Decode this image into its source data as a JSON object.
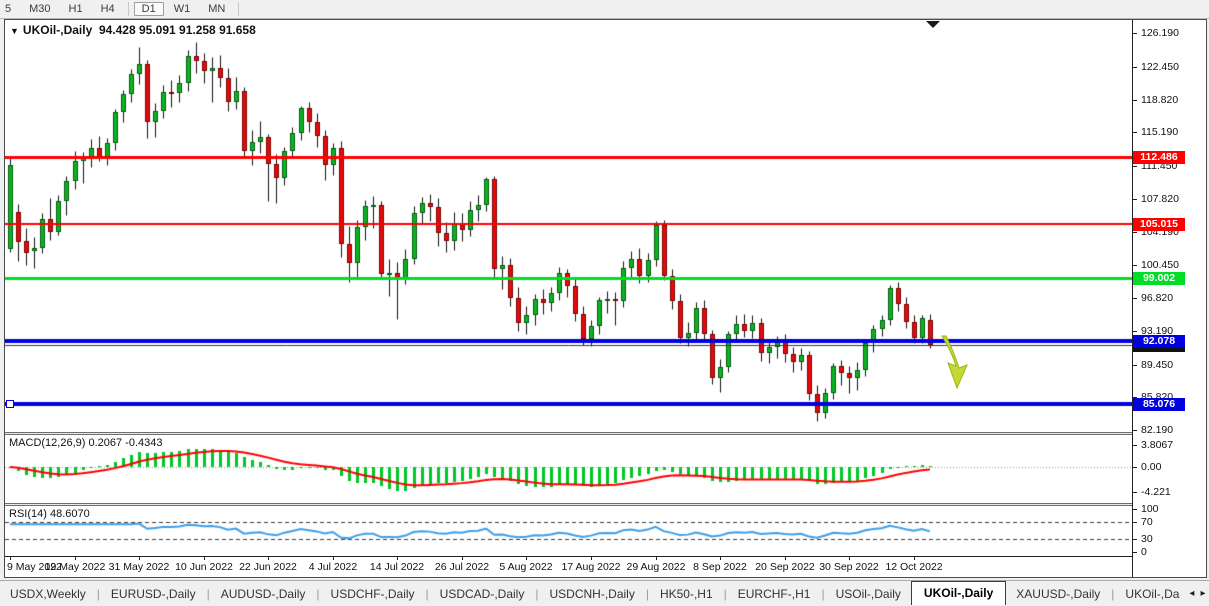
{
  "toolbar": {
    "timeframes": [
      "5",
      "M30",
      "H1",
      "H4",
      "D1",
      "W1",
      "MN"
    ],
    "active": "D1"
  },
  "window": {
    "collapse_arrow": "▼",
    "title": "UKOil-,Daily",
    "ohlc_text": "94.428 95.091 91.258 91.658",
    "shift_marker": "▼"
  },
  "price_axis": {
    "ticks": [
      126.19,
      122.45,
      118.82,
      115.19,
      111.45,
      107.82,
      104.19,
      100.45,
      96.82,
      93.19,
      89.45,
      85.82,
      82.19
    ]
  },
  "macd_panel": {
    "name": "MACD(12,26,9)",
    "values_text": "0.2067 -0.4343",
    "axis_ticks": [
      {
        "v": 3.8067,
        "label": "3.8067"
      },
      {
        "v": 0,
        "label": "0.00"
      },
      {
        "v": -4.221,
        "label": "-4.221"
      }
    ],
    "bar_color": "#00c826",
    "signal_color": "#ff0000",
    "fast": 12,
    "slow": 26,
    "signal": 9
  },
  "rsi_panel": {
    "name": "RSI(14)",
    "value_text": "48.6070",
    "period": 14,
    "axis_ticks": [
      100,
      70,
      30,
      0
    ],
    "levels": [
      70,
      30
    ],
    "line_color": "#3e9ee8"
  },
  "date_axis": {
    "labels": [
      {
        "i": 0,
        "t": "9 May 2022"
      },
      {
        "i": 8,
        "t": "19 May 2022"
      },
      {
        "i": 16,
        "t": "31 May 2022"
      },
      {
        "i": 24,
        "t": "10 Jun 2022"
      },
      {
        "i": 32,
        "t": "22 Jun 2022"
      },
      {
        "i": 40,
        "t": "4 Jul 2022"
      },
      {
        "i": 48,
        "t": "14 Jul 2022"
      },
      {
        "i": 56,
        "t": "26 Jul 2022"
      },
      {
        "i": 64,
        "t": "5 Aug 2022"
      },
      {
        "i": 72,
        "t": "17 Aug 2022"
      },
      {
        "i": 80,
        "t": "29 Aug 2022"
      },
      {
        "i": 88,
        "t": "8 Sep 2022"
      },
      {
        "i": 96,
        "t": "20 Sep 2022"
      },
      {
        "i": 104,
        "t": "30 Sep 2022"
      },
      {
        "i": 112,
        "t": "12 Oct 2022"
      }
    ]
  },
  "tabs": {
    "items": [
      "USDX,Weekly",
      "EURUSD-,Daily",
      "AUDUSD-,Daily",
      "USDCHF-,Daily",
      "USDCAD-,Daily",
      "USDCNH-,Daily",
      "HK50-,H1",
      "EURCHF-,H1",
      "USOil-,Daily",
      "UKOil-,Daily",
      "XAUUSD-,Daily",
      "UKOil-,Da"
    ],
    "active": "UKOil-,Daily",
    "scroll_left": "◂",
    "scroll_right": "▸"
  },
  "signal_arrow": {
    "fill": "#c3d832",
    "stroke": "#9db513"
  },
  "chart_data": {
    "type": "candlestick",
    "symbol": "UKOil-",
    "timeframe": "Daily",
    "title": "UKOil-,Daily",
    "ohlc_display": {
      "open": 94.428,
      "high": 95.091,
      "low": 91.258,
      "close": 91.658
    },
    "bull_color": "#0cb422",
    "bear_color": "#e60a0a",
    "wick_color": "#141414",
    "y_axis_range": [
      82.19,
      126.19
    ],
    "hlines": [
      {
        "value": 112.486,
        "label": "112.486",
        "color": "#ff0000",
        "thickness": 3
      },
      {
        "value": 105.015,
        "label": "105.015",
        "color": "#ff0000",
        "thickness": 2
      },
      {
        "value": 99.002,
        "label": "99.002",
        "color": "#00dd26",
        "thickness": 3
      },
      {
        "value": 92.078,
        "label": "92.078",
        "color": "#0000e0",
        "thickness": 4
      },
      {
        "value": 85.076,
        "label": "85.076",
        "color": "#0000e0",
        "thickness": 4,
        "handle": true
      }
    ],
    "current_price": {
      "value": 91.658,
      "label": "91.658",
      "line_color": "#3c3c3c",
      "bg": "#111111",
      "fg": "#e8e8e8"
    },
    "candles": [
      [
        102.3,
        112.4,
        101.9,
        111.6
      ],
      [
        106.4,
        107.2,
        100.9,
        103.0
      ],
      [
        103.2,
        104.6,
        100.5,
        101.8
      ],
      [
        102.0,
        103.6,
        100.2,
        102.4
      ],
      [
        102.4,
        106.2,
        101.8,
        105.6
      ],
      [
        105.6,
        107.9,
        103.3,
        104.2
      ],
      [
        104.2,
        108.3,
        103.8,
        107.6
      ],
      [
        107.6,
        110.4,
        106.0,
        109.8
      ],
      [
        109.8,
        113.1,
        108.9,
        112.0
      ],
      [
        112.0,
        113.0,
        109.6,
        112.5
      ],
      [
        112.5,
        114.4,
        111.3,
        113.4
      ],
      [
        113.4,
        114.8,
        112.0,
        112.4
      ],
      [
        112.4,
        114.6,
        111.6,
        114.0
      ],
      [
        114.0,
        117.8,
        113.2,
        117.4
      ],
      [
        117.4,
        119.9,
        116.3,
        119.4
      ],
      [
        119.4,
        122.2,
        118.6,
        121.6
      ],
      [
        121.6,
        124.6,
        120.5,
        122.8
      ],
      [
        122.8,
        123.2,
        114.6,
        116.3
      ],
      [
        116.3,
        118.4,
        114.7,
        117.6
      ],
      [
        117.6,
        120.4,
        116.8,
        119.7
      ],
      [
        119.7,
        121.0,
        118.0,
        119.5
      ],
      [
        119.5,
        121.5,
        118.6,
        120.6
      ],
      [
        120.6,
        124.3,
        119.8,
        123.6
      ],
      [
        123.6,
        125.2,
        121.8,
        123.1
      ],
      [
        123.1,
        124.0,
        120.6,
        122.0
      ],
      [
        122.0,
        123.5,
        118.5,
        122.3
      ],
      [
        122.3,
        123.8,
        120.2,
        121.2
      ],
      [
        121.2,
        122.3,
        117.5,
        118.5
      ],
      [
        118.5,
        121.3,
        117.8,
        119.8
      ],
      [
        119.8,
        120.2,
        112.6,
        113.1
      ],
      [
        113.1,
        115.4,
        111.6,
        114.1
      ],
      [
        114.1,
        116.4,
        112.9,
        114.7
      ],
      [
        114.7,
        115.0,
        107.6,
        111.7
      ],
      [
        111.7,
        112.8,
        107.4,
        110.1
      ],
      [
        110.1,
        113.6,
        109.3,
        113.1
      ],
      [
        113.1,
        115.8,
        112.4,
        115.1
      ],
      [
        115.1,
        118.1,
        114.3,
        117.9
      ],
      [
        117.9,
        118.6,
        115.2,
        116.3
      ],
      [
        116.3,
        117.3,
        113.6,
        114.8
      ],
      [
        114.8,
        115.5,
        109.9,
        111.6
      ],
      [
        111.6,
        114.0,
        110.5,
        113.5
      ],
      [
        113.5,
        114.2,
        101.4,
        102.8
      ],
      [
        102.8,
        104.8,
        98.6,
        100.7
      ],
      [
        100.7,
        105.5,
        99.2,
        104.7
      ],
      [
        104.7,
        107.7,
        103.3,
        107.0
      ],
      [
        107.0,
        108.1,
        104.6,
        107.1
      ],
      [
        107.1,
        107.6,
        98.9,
        99.5
      ],
      [
        99.5,
        101.2,
        97.1,
        99.6
      ],
      [
        99.6,
        100.8,
        94.5,
        99.1
      ],
      [
        99.1,
        102.3,
        98.4,
        101.2
      ],
      [
        101.2,
        107.0,
        100.6,
        106.3
      ],
      [
        106.3,
        108.0,
        105.1,
        107.4
      ],
      [
        107.4,
        108.4,
        105.4,
        106.9
      ],
      [
        106.9,
        107.9,
        102.6,
        104.0
      ],
      [
        104.0,
        105.3,
        101.9,
        103.2
      ],
      [
        103.2,
        106.4,
        102.1,
        105.2
      ],
      [
        105.2,
        106.3,
        103.1,
        104.4
      ],
      [
        104.4,
        107.6,
        103.7,
        106.6
      ],
      [
        106.6,
        108.3,
        105.4,
        107.1
      ],
      [
        107.1,
        110.2,
        106.5,
        110.0
      ],
      [
        110.0,
        110.4,
        99.1,
        100.0
      ],
      [
        100.0,
        101.5,
        97.8,
        100.5
      ],
      [
        100.5,
        101.3,
        95.9,
        96.8
      ],
      [
        96.8,
        98.1,
        93.2,
        94.1
      ],
      [
        94.1,
        96.0,
        92.8,
        94.9
      ],
      [
        94.9,
        97.3,
        93.9,
        96.7
      ],
      [
        96.7,
        97.8,
        95.1,
        96.3
      ],
      [
        96.3,
        98.1,
        95.4,
        97.4
      ],
      [
        97.4,
        100.3,
        96.6,
        99.6
      ],
      [
        99.6,
        100.1,
        96.9,
        98.2
      ],
      [
        98.2,
        98.9,
        94.3,
        95.1
      ],
      [
        95.1,
        95.9,
        91.6,
        92.3
      ],
      [
        92.3,
        94.4,
        91.5,
        93.7
      ],
      [
        93.7,
        97.0,
        92.9,
        96.6
      ],
      [
        96.6,
        97.6,
        95.2,
        96.7
      ],
      [
        96.7,
        97.5,
        93.9,
        96.5
      ],
      [
        96.5,
        100.9,
        95.8,
        100.2
      ],
      [
        100.2,
        102.0,
        99.0,
        101.2
      ],
      [
        101.2,
        102.4,
        98.5,
        99.3
      ],
      [
        99.3,
        101.8,
        98.6,
        101.0
      ],
      [
        101.0,
        105.4,
        100.4,
        104.9
      ],
      [
        104.9,
        105.5,
        98.8,
        99.3
      ],
      [
        99.3,
        100.1,
        95.6,
        96.5
      ],
      [
        96.5,
        97.3,
        91.9,
        92.4
      ],
      [
        92.4,
        94.2,
        91.5,
        93.0
      ],
      [
        93.0,
        96.4,
        92.3,
        95.7
      ],
      [
        95.7,
        96.6,
        92.1,
        92.8
      ],
      [
        92.8,
        93.3,
        87.3,
        88.0
      ],
      [
        88.0,
        90.1,
        86.4,
        89.2
      ],
      [
        89.2,
        93.2,
        88.6,
        92.8
      ],
      [
        92.8,
        94.9,
        92.0,
        94.0
      ],
      [
        94.0,
        95.1,
        92.5,
        93.2
      ],
      [
        93.2,
        95.0,
        92.4,
        94.1
      ],
      [
        94.1,
        94.6,
        89.9,
        90.8
      ],
      [
        90.8,
        92.2,
        89.6,
        91.4
      ],
      [
        91.4,
        92.6,
        90.2,
        92.0
      ],
      [
        92.0,
        92.8,
        89.7,
        90.6
      ],
      [
        90.6,
        91.4,
        88.6,
        89.8
      ],
      [
        89.8,
        91.3,
        88.9,
        90.5
      ],
      [
        90.5,
        91.0,
        85.5,
        86.2
      ],
      [
        86.2,
        87.2,
        83.2,
        84.1
      ],
      [
        84.1,
        86.9,
        83.5,
        86.3
      ],
      [
        86.3,
        89.6,
        85.7,
        89.3
      ],
      [
        89.3,
        90.0,
        87.2,
        88.5
      ],
      [
        88.5,
        89.3,
        86.3,
        88.0
      ],
      [
        88.0,
        89.7,
        86.7,
        88.9
      ],
      [
        88.9,
        92.2,
        88.2,
        91.8
      ],
      [
        91.8,
        93.9,
        90.9,
        93.4
      ],
      [
        93.4,
        95.0,
        92.6,
        94.4
      ],
      [
        94.4,
        98.3,
        93.8,
        97.9
      ],
      [
        97.9,
        98.6,
        95.4,
        96.2
      ],
      [
        96.2,
        97.0,
        93.5,
        94.2
      ],
      [
        94.2,
        94.9,
        91.9,
        92.4
      ],
      [
        92.4,
        95.0,
        91.8,
        94.6
      ],
      [
        94.428,
        95.091,
        91.258,
        91.658
      ]
    ]
  }
}
